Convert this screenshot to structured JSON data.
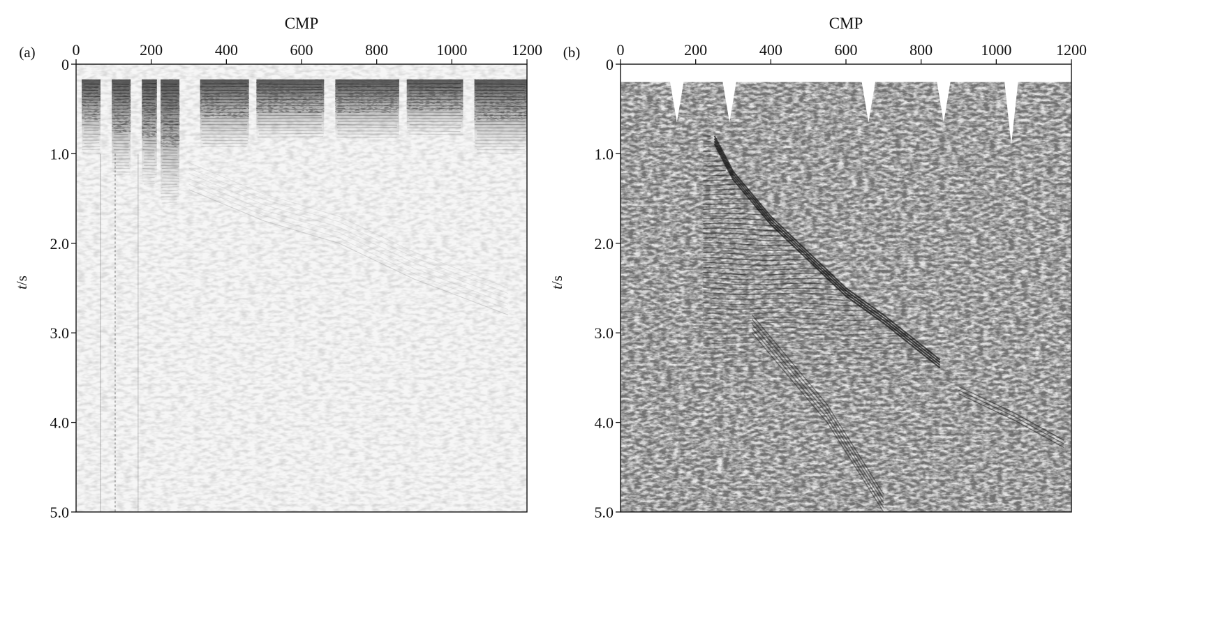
{
  "figure": {
    "panels": [
      {
        "id": "a",
        "label": "(a)"
      },
      {
        "id": "b",
        "label": "(b)"
      }
    ]
  },
  "chart_data": [
    {
      "type": "heatmap",
      "panel_label": "(a)",
      "xlabel": "CMP",
      "ylabel_italic": "t",
      "ylabel_unit": "/s",
      "xlim": [
        0,
        1200
      ],
      "ylim": [
        0,
        5.0
      ],
      "x_axis_position": "top",
      "y_inverted": true,
      "xticks": [
        0,
        200,
        400,
        600,
        800,
        1000,
        1200
      ],
      "xtick_labels": [
        "0",
        "200",
        "400",
        "600",
        "800",
        "1000",
        "1200"
      ],
      "yticks": [
        0,
        1.0,
        2.0,
        3.0,
        4.0,
        5.0
      ],
      "ytick_labels": [
        "0",
        "1.0",
        "2.0",
        "3.0",
        "4.0",
        "5.0"
      ],
      "grid": false,
      "colormap": "grayscale",
      "description_features": {
        "top_mute_start_s": 0.15,
        "strong_energy_depth_s": [
          0.15,
          1.2
        ],
        "near_offset_gaps_cmp": [
          70,
          155,
          230,
          290
        ],
        "faint_refraction_curve": [
          [
            300,
            1.4
          ],
          [
            500,
            1.75
          ],
          [
            700,
            2.0
          ],
          [
            900,
            2.4
          ],
          [
            1150,
            2.8
          ]
        ]
      }
    },
    {
      "type": "heatmap",
      "panel_label": "(b)",
      "xlabel": "CMP",
      "ylabel_italic": "t",
      "ylabel_unit": "/s",
      "xlim": [
        0,
        1200
      ],
      "ylim": [
        0,
        5.0
      ],
      "x_axis_position": "top",
      "y_inverted": true,
      "xticks": [
        0,
        200,
        400,
        600,
        800,
        1000,
        1200
      ],
      "xtick_labels": [
        "0",
        "200",
        "400",
        "600",
        "800",
        "1000",
        "1200"
      ],
      "yticks": [
        0,
        1.0,
        2.0,
        3.0,
        4.0,
        5.0
      ],
      "ytick_labels": [
        "0",
        "1.0",
        "2.0",
        "3.0",
        "4.0",
        "5.0"
      ],
      "grid": false,
      "colormap": "grayscale",
      "description_features": {
        "top_mute_start_s": 0.2,
        "mute_notches_cmp": [
          150,
          290,
          660,
          860,
          1040
        ],
        "fault_diffraction_curve": [
          [
            250,
            0.8
          ],
          [
            300,
            1.2
          ],
          [
            400,
            1.7
          ],
          [
            500,
            2.1
          ],
          [
            600,
            2.5
          ],
          [
            700,
            2.8
          ],
          [
            850,
            3.3
          ]
        ],
        "reflector_layers_s": [
          0.5,
          0.8,
          1.1,
          1.4,
          1.7,
          2.0,
          2.3,
          2.6,
          2.9,
          3.2
        ],
        "steep_event": [
          [
            350,
            2.8
          ],
          [
            550,
            3.8
          ],
          [
            700,
            4.8
          ]
        ],
        "late_event": [
          [
            900,
            3.6
          ],
          [
            1050,
            3.9
          ],
          [
            1180,
            4.2
          ]
        ]
      }
    }
  ]
}
